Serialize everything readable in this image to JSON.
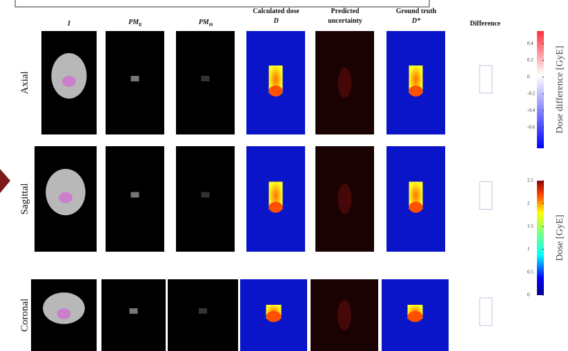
{
  "header": {
    "columns": [
      {
        "lines": [
          "I"
        ],
        "italic": true
      },
      {
        "main": "PM",
        "sub": "E"
      },
      {
        "main": "PM",
        "sub": "Θ"
      },
      {
        "lines": [
          "Calculated dose",
          "D"
        ]
      },
      {
        "lines": [
          "Predicted",
          "uncertainty"
        ]
      },
      {
        "lines": [
          "Ground truth",
          "D*"
        ]
      },
      {
        "lines": [
          "Difference"
        ]
      }
    ]
  },
  "rows": [
    "Axial",
    "Sagittal",
    "Coronal"
  ],
  "colorbars": [
    {
      "label": "Dose difference [GyE]",
      "lim": [
        -0.85,
        0.55
      ],
      "ticks": [
        0.4,
        0.2,
        0,
        -0.2,
        -0.4,
        -0.6
      ]
    },
    {
      "label": "Dose [GyE]",
      "lim": [
        0,
        2.5
      ],
      "ticks": [
        2.5,
        2,
        1.5,
        1,
        0.5,
        0
      ]
    }
  ]
}
